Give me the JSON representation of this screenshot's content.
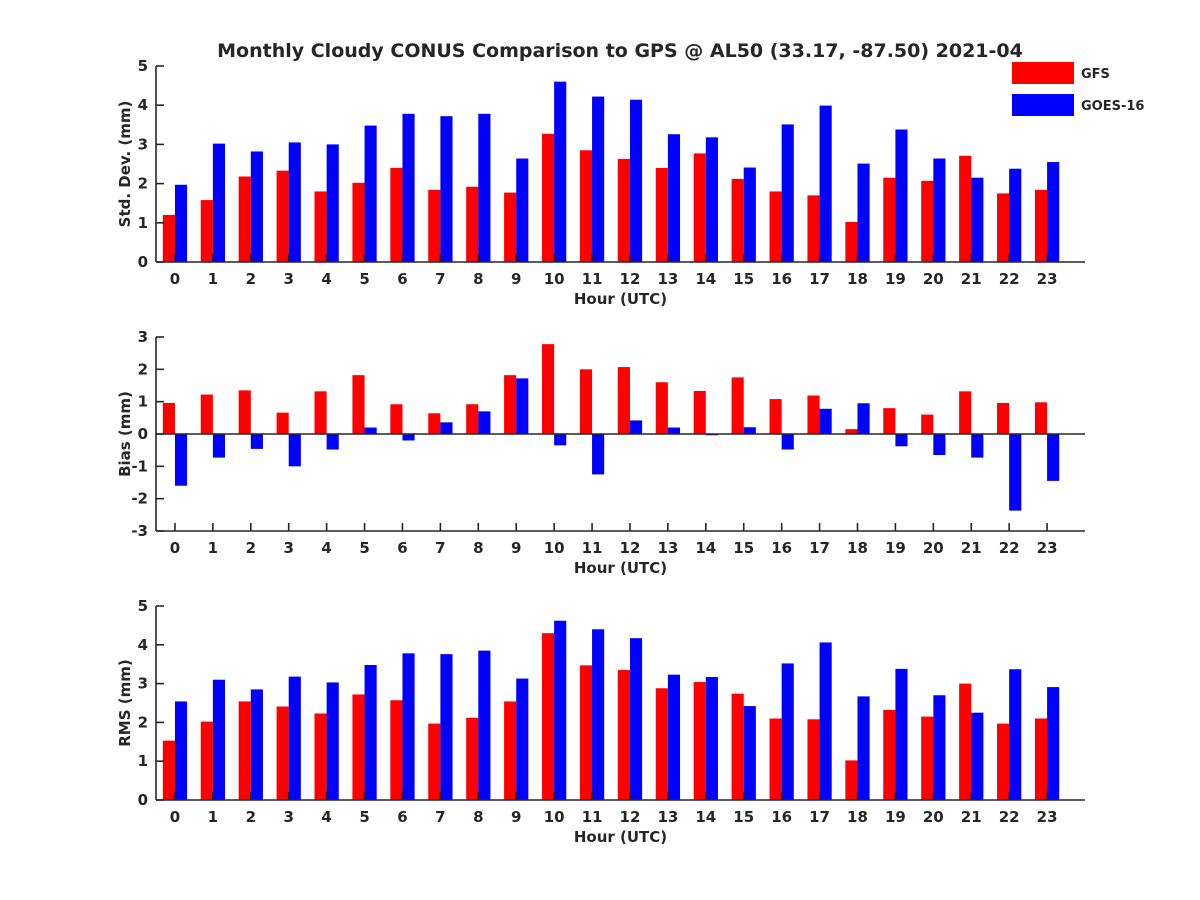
{
  "chart_data": {
    "type": "bar",
    "title": "Monthly Cloudy CONUS Comparison to GPS @ AL50 (33.17, -87.50) 2021-04",
    "categories": [
      "0",
      "1",
      "2",
      "3",
      "4",
      "5",
      "6",
      "7",
      "8",
      "9",
      "10",
      "11",
      "12",
      "13",
      "14",
      "15",
      "16",
      "17",
      "18",
      "19",
      "20",
      "21",
      "22",
      "23"
    ],
    "legend": {
      "placement": "top-right",
      "entries": [
        {
          "name": "GFS",
          "color": "#ff0000"
        },
        {
          "name": "GOES-16",
          "color": "#0000ff"
        }
      ]
    },
    "panels": [
      {
        "id": "std",
        "ylabel": "Std. Dev. (mm)",
        "xlabel": "Hour (UTC)",
        "ylim": [
          0,
          5
        ],
        "yticks": [
          0,
          1,
          2,
          3,
          4,
          5
        ],
        "series": [
          {
            "name": "GFS",
            "color": "#ff0000",
            "values": [
              1.2,
              1.58,
              2.18,
              2.33,
              1.8,
              2.02,
              2.4,
              1.84,
              1.92,
              1.77,
              3.27,
              2.85,
              2.63,
              2.4,
              2.77,
              2.12,
              1.8,
              1.7,
              1.02,
              2.15,
              2.07,
              2.71,
              1.75,
              1.84
            ]
          },
          {
            "name": "GOES-16",
            "color": "#0000ff",
            "values": [
              1.97,
              3.02,
              2.82,
              3.05,
              3.0,
              3.48,
              3.78,
              3.72,
              3.78,
              2.64,
              4.6,
              4.22,
              4.14,
              3.26,
              3.18,
              2.41,
              3.51,
              3.99,
              2.51,
              3.38,
              2.64,
              2.15,
              2.38,
              2.55
            ]
          }
        ]
      },
      {
        "id": "bias",
        "ylabel": "Bias (mm)",
        "xlabel": "Hour (UTC)",
        "ylim": [
          -3,
          3
        ],
        "yticks": [
          -3,
          -2,
          -1,
          0,
          1,
          2,
          3
        ],
        "series": [
          {
            "name": "GFS",
            "color": "#ff0000",
            "values": [
              0.96,
              1.22,
              1.35,
              0.66,
              1.32,
              1.82,
              0.92,
              0.64,
              0.92,
              1.82,
              2.78,
              2.0,
              2.07,
              1.6,
              1.33,
              1.75,
              1.08,
              1.19,
              0.15,
              0.8,
              0.6,
              1.32,
              0.96,
              0.98
            ]
          },
          {
            "name": "GOES-16",
            "color": "#0000ff",
            "values": [
              -1.6,
              -0.73,
              -0.46,
              -1.0,
              -0.48,
              0.2,
              -0.2,
              0.36,
              0.7,
              1.72,
              -0.35,
              -1.25,
              0.42,
              0.2,
              -0.04,
              0.21,
              -0.48,
              0.78,
              0.95,
              -0.38,
              -0.65,
              -0.73,
              -2.37,
              -1.45
            ]
          }
        ]
      },
      {
        "id": "rms",
        "ylabel": "RMS (mm)",
        "xlabel": "Hour (UTC)",
        "ylim": [
          0,
          5
        ],
        "yticks": [
          0,
          1,
          2,
          3,
          4,
          5
        ],
        "series": [
          {
            "name": "GFS",
            "color": "#ff0000",
            "values": [
              1.53,
              2.02,
              2.54,
              2.41,
              2.23,
              2.72,
              2.57,
              1.97,
              2.12,
              2.54,
              4.3,
              3.47,
              3.35,
              2.88,
              3.04,
              2.74,
              2.1,
              2.08,
              1.02,
              2.32,
              2.15,
              3.0,
              1.97,
              2.1
            ]
          },
          {
            "name": "GOES-16",
            "color": "#0000ff",
            "values": [
              2.54,
              3.1,
              2.85,
              3.18,
              3.03,
              3.48,
              3.78,
              3.76,
              3.85,
              3.13,
              4.62,
              4.4,
              4.17,
              3.23,
              3.17,
              2.42,
              3.52,
              4.06,
              2.67,
              3.38,
              2.7,
              2.25,
              3.37,
              2.91
            ]
          }
        ]
      }
    ]
  }
}
